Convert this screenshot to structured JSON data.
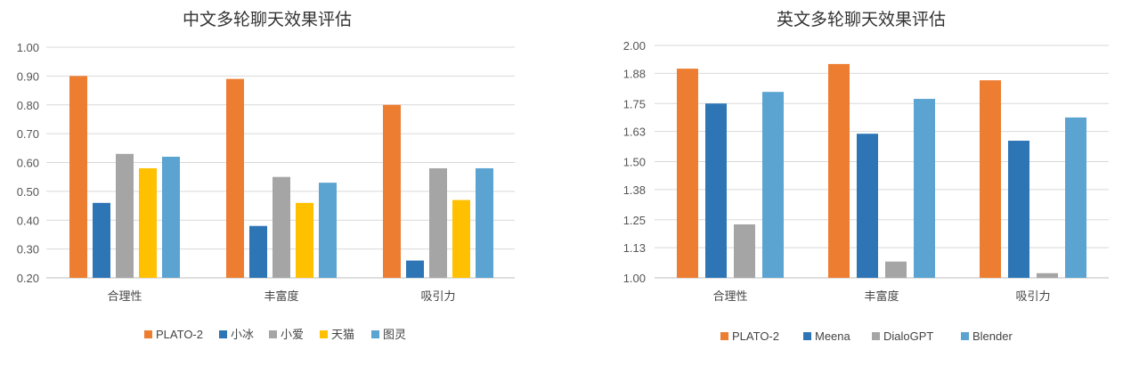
{
  "chart_data": [
    {
      "type": "bar",
      "title": "中文多轮聊天效果评估",
      "categories": [
        "合理性",
        "丰富度",
        "吸引力"
      ],
      "ylim": [
        0.2,
        1.0
      ],
      "yticks": [
        "0.20",
        "0.30",
        "0.40",
        "0.50",
        "0.60",
        "0.70",
        "0.80",
        "0.90",
        "1.00"
      ],
      "grid": true,
      "legend_position": "bottom",
      "series": [
        {
          "name": "PLATO-2",
          "color": "#ed7d31",
          "values": [
            0.9,
            0.89,
            0.8
          ]
        },
        {
          "name": "小冰",
          "color": "#2e75b6",
          "values": [
            0.46,
            0.38,
            0.26
          ]
        },
        {
          "name": "小爱",
          "color": "#a5a5a5",
          "values": [
            0.63,
            0.55,
            0.58
          ]
        },
        {
          "name": "天猫",
          "color": "#ffc000",
          "values": [
            0.58,
            0.46,
            0.47
          ]
        },
        {
          "name": "图灵",
          "color": "#5ba3d0",
          "values": [
            0.62,
            0.53,
            0.58
          ]
        }
      ]
    },
    {
      "type": "bar",
      "title": "英文多轮聊天效果评估",
      "categories": [
        "合理性",
        "丰富度",
        "吸引力"
      ],
      "ylim": [
        1.0,
        2.0
      ],
      "yticks": [
        "1.00",
        "1.13",
        "1.25",
        "1.38",
        "1.50",
        "1.63",
        "1.75",
        "1.88",
        "2.00"
      ],
      "grid": true,
      "legend_position": "bottom",
      "series": [
        {
          "name": "PLATO-2",
          "color": "#ed7d31",
          "values": [
            1.9,
            1.92,
            1.85
          ]
        },
        {
          "name": "Meena",
          "color": "#2e75b6",
          "values": [
            1.75,
            1.62,
            1.59
          ]
        },
        {
          "name": "DialoGPT",
          "color": "#a5a5a5",
          "values": [
            1.23,
            1.07,
            1.02
          ]
        },
        {
          "name": "Blender",
          "color": "#5ba3d0",
          "values": [
            1.8,
            1.77,
            1.69
          ]
        }
      ]
    }
  ]
}
